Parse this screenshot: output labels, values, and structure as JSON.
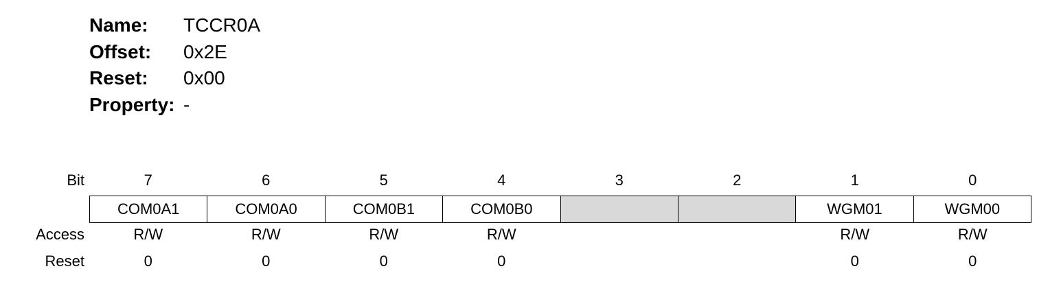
{
  "header": {
    "name_label": "Name:",
    "name_value": "TCCR0A",
    "offset_label": "Offset:",
    "offset_value": "0x2E",
    "reset_label": "Reset:",
    "reset_value": "0x00",
    "property_label": "Property:",
    "property_value": "-"
  },
  "register": {
    "bit_label": "Bit",
    "access_label": "Access",
    "reset_label": "Reset",
    "bits": [
      "7",
      "6",
      "5",
      "4",
      "3",
      "2",
      "1",
      "0"
    ],
    "fields": [
      "COM0A1",
      "COM0A0",
      "COM0B1",
      "COM0B0",
      "",
      "",
      "WGM01",
      "WGM00"
    ],
    "access": [
      "R/W",
      "R/W",
      "R/W",
      "R/W",
      "",
      "",
      "R/W",
      "R/W"
    ],
    "resets": [
      "0",
      "0",
      "0",
      "0",
      "",
      "",
      "0",
      "0"
    ],
    "reserved_color": "#d9d9d9"
  }
}
